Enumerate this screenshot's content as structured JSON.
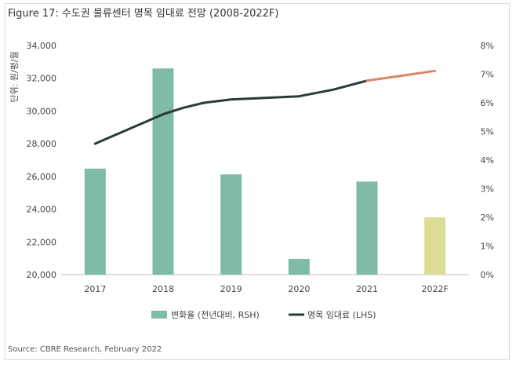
{
  "title": "Figure 17: 수도권 물류센터 명목 임대료 전망 (2008-2022F)",
  "source": "Source: CBRE Research, February 2022",
  "colors": {
    "bar": "#7fbba7",
    "bar_forecast": "#dcdc96",
    "line": "#2a3a36",
    "line_forecast": "#d98866"
  },
  "chart_data": {
    "type": "bar+line",
    "categories": [
      "2017",
      "2018",
      "2019",
      "2020",
      "2021",
      "2022F"
    ],
    "left_axis": {
      "label": "단위: 원/평/월",
      "ylim": [
        20000,
        34000
      ],
      "ticks": [
        "20,000",
        "22,000",
        "24,000",
        "26,000",
        "28,000",
        "30,000",
        "32,000",
        "34,000"
      ]
    },
    "right_axis": {
      "ylim": [
        0,
        8
      ],
      "ticks": [
        "0%",
        "1%",
        "2%",
        "3%",
        "4%",
        "5%",
        "6%",
        "7%",
        "8%"
      ]
    },
    "series": [
      {
        "name": "변화율 (전년대비, RSH)",
        "type": "bar",
        "axis": "right",
        "values": [
          3.7,
          7.2,
          3.5,
          0.55,
          3.25,
          2.0
        ],
        "forecast_index": 5
      },
      {
        "name": "명목 임대료 (LHS)",
        "type": "line",
        "axis": "left",
        "x": [
          2017,
          2017.5,
          2018,
          2018.3,
          2018.6,
          2019,
          2019.5,
          2020,
          2020.5,
          2021,
          2021.5,
          2022
        ],
        "values": [
          28000,
          28900,
          29800,
          30200,
          30500,
          30700,
          30800,
          30900,
          31300,
          31850,
          32150,
          32450
        ],
        "forecast_from_x": 2021
      }
    ],
    "grid": false,
    "legend": "bottom-center"
  }
}
